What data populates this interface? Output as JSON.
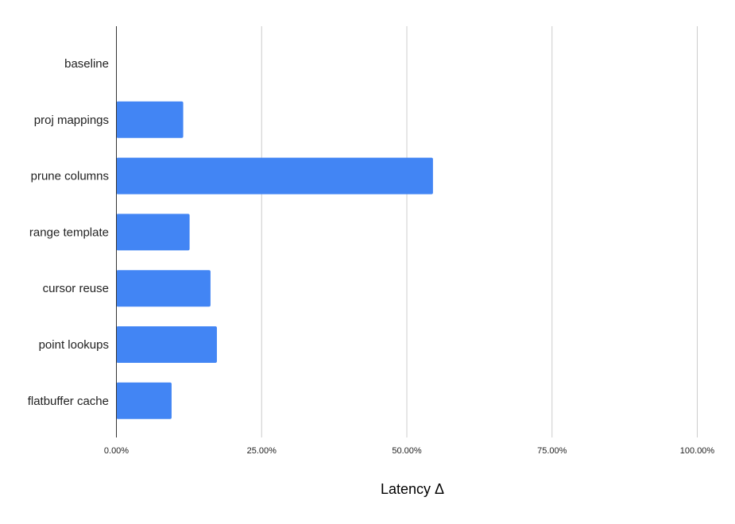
{
  "chart_data": {
    "type": "bar",
    "orientation": "horizontal",
    "categories": [
      "baseline",
      "proj mappings",
      "prune columns",
      "range template",
      "cursor reuse",
      "point lookups",
      "flatbuffer cache"
    ],
    "values": [
      0,
      11.5,
      54.5,
      12.6,
      16.2,
      17.3,
      9.5
    ],
    "unit": "%",
    "title": "",
    "xlabel": "Latency Δ",
    "ylabel": "",
    "xlim": [
      0,
      100
    ],
    "xticks": [
      "0.00%",
      "25.00%",
      "50.00%",
      "75.00%",
      "100.00%"
    ],
    "grid": true,
    "legend": "none",
    "bar_color": "#4285f4"
  }
}
